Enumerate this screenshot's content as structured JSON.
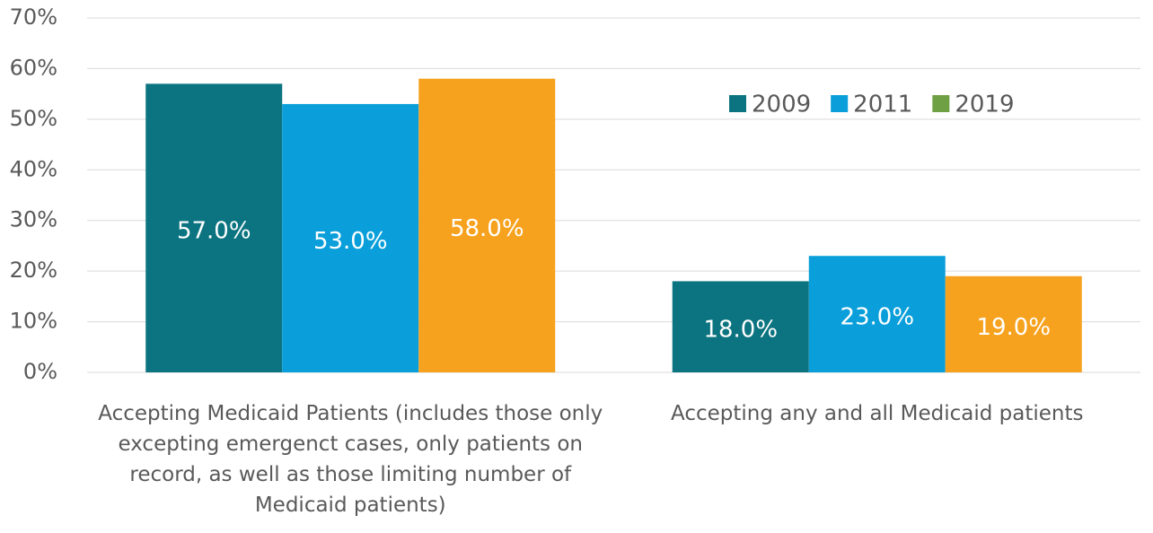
{
  "chart_data": {
    "type": "bar",
    "categories": [
      "Accepting Medicaid Patients (includes those only excepting emergenct cases, only patients on record, as well as those limiting number of Medicaid patients)",
      "Accepting any and all Medicaid patients"
    ],
    "series": [
      {
        "name": "2009",
        "color": "#0b7480",
        "legend_color": "#0b7480",
        "values": [
          57,
          18
        ],
        "value_labels": [
          "57.0%",
          "18.0%"
        ]
      },
      {
        "name": "2011",
        "color": "#0a9fda",
        "legend_color": "#0a9fda",
        "values": [
          53,
          23
        ],
        "value_labels": [
          "53.0%",
          "23.0%"
        ]
      },
      {
        "name": "2019",
        "color": "#f6a21e",
        "legend_color": "#70a044",
        "values": [
          58,
          19
        ],
        "value_labels": [
          "58.0%",
          "19.0%"
        ]
      }
    ],
    "ylim": [
      0,
      70
    ],
    "yticks": [
      {
        "value": 0,
        "label": "0%"
      },
      {
        "value": 10,
        "label": "10%"
      },
      {
        "value": 20,
        "label": "20%"
      },
      {
        "value": 30,
        "label": "30%"
      },
      {
        "value": 40,
        "label": "40%"
      },
      {
        "value": 50,
        "label": "50%"
      },
      {
        "value": 60,
        "label": "60%"
      },
      {
        "value": 70,
        "label": "70%"
      }
    ],
    "grid": true,
    "legend": "upper right"
  }
}
